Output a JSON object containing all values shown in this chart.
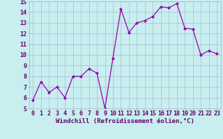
{
  "x": [
    0,
    1,
    2,
    3,
    4,
    5,
    6,
    7,
    8,
    9,
    10,
    11,
    12,
    13,
    14,
    15,
    16,
    17,
    18,
    19,
    20,
    21,
    22,
    23
  ],
  "y": [
    5.8,
    7.5,
    6.5,
    7.0,
    6.0,
    8.0,
    8.0,
    8.7,
    8.3,
    5.0,
    9.7,
    14.3,
    12.1,
    13.0,
    13.2,
    13.6,
    14.5,
    14.4,
    14.8,
    12.5,
    12.4,
    10.0,
    10.4,
    10.1
  ],
  "xlabel": "Windchill (Refroidissement éolien,°C)",
  "ylim": [
    5,
    15
  ],
  "xlim": [
    -0.5,
    23.5
  ],
  "yticks": [
    5,
    6,
    7,
    8,
    9,
    10,
    11,
    12,
    13,
    14,
    15
  ],
  "xticks": [
    0,
    1,
    2,
    3,
    4,
    5,
    6,
    7,
    8,
    9,
    10,
    11,
    12,
    13,
    14,
    15,
    16,
    17,
    18,
    19,
    20,
    21,
    22,
    23
  ],
  "line_color": "#9900aa",
  "marker_color": "#9900aa",
  "bg_color": "#c8eef0",
  "grid_color": "#aabbcc",
  "label_color": "#660066",
  "xlabel_fontsize": 6.5,
  "tick_fontsize": 6.0
}
